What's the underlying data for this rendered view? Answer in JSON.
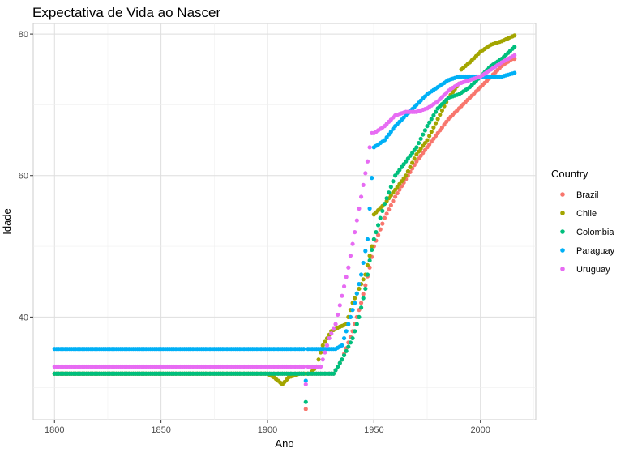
{
  "chart_data": {
    "type": "scatter",
    "title": "Expectativa de Vida ao Nascer",
    "xlabel": "Ano",
    "ylabel": "Idade",
    "xlim": [
      1790,
      2026
    ],
    "ylim": [
      25.5,
      81.5
    ],
    "x_ticks": [
      1800,
      1850,
      1900,
      1950,
      2000
    ],
    "y_ticks": [
      40,
      60,
      80
    ],
    "grid": true,
    "legend": {
      "title": "Country",
      "placement": "right"
    },
    "series": [
      {
        "name": "Brazil",
        "color": "#F8766D",
        "points": [
          [
            1800,
            32
          ],
          [
            1850,
            32
          ],
          [
            1900,
            32
          ],
          [
            1917,
            32
          ],
          [
            1918,
            27
          ],
          [
            1919,
            32
          ],
          [
            1920,
            32
          ],
          [
            1925,
            32
          ],
          [
            1930,
            32
          ],
          [
            1931,
            32
          ],
          [
            1935,
            34
          ],
          [
            1940,
            38
          ],
          [
            1944,
            42
          ],
          [
            1948,
            47
          ],
          [
            1950,
            50
          ],
          [
            1955,
            54
          ],
          [
            1960,
            57
          ],
          [
            1965,
            59.5
          ],
          [
            1970,
            62
          ],
          [
            1975,
            64
          ],
          [
            1980,
            66
          ],
          [
            1985,
            68
          ],
          [
            1990,
            69.5
          ],
          [
            1995,
            71
          ],
          [
            2000,
            72.5
          ],
          [
            2005,
            74
          ],
          [
            2010,
            75.5
          ],
          [
            2015,
            76.5
          ],
          [
            2016,
            76.5
          ]
        ]
      },
      {
        "name": "Chile",
        "color": "#A3A500",
        "points": [
          [
            1800,
            32
          ],
          [
            1850,
            32
          ],
          [
            1900,
            32
          ],
          [
            1903,
            31.5
          ],
          [
            1907,
            30.5
          ],
          [
            1910,
            31.5
          ],
          [
            1915,
            32
          ],
          [
            1920,
            32
          ],
          [
            1923,
            33
          ],
          [
            1926,
            36
          ],
          [
            1930,
            38
          ],
          [
            1933,
            38.5
          ],
          [
            1937,
            39
          ],
          [
            1940,
            42
          ],
          [
            1943,
            44
          ],
          [
            1946,
            46
          ],
          [
            1949,
            50
          ],
          [
            1950,
            54.5
          ],
          [
            1955,
            56
          ],
          [
            1960,
            58
          ],
          [
            1965,
            60
          ],
          [
            1970,
            63
          ],
          [
            1975,
            65
          ],
          [
            1980,
            68
          ],
          [
            1985,
            71
          ],
          [
            1990,
            73
          ],
          [
            1991,
            75
          ],
          [
            1995,
            76
          ],
          [
            2000,
            77.5
          ],
          [
            2005,
            78.5
          ],
          [
            2010,
            79
          ],
          [
            2016,
            79.8
          ]
        ]
      },
      {
        "name": "Colombia",
        "color": "#00BF7D",
        "points": [
          [
            1800,
            32
          ],
          [
            1850,
            32
          ],
          [
            1900,
            32
          ],
          [
            1917,
            32
          ],
          [
            1918,
            28
          ],
          [
            1919,
            32
          ],
          [
            1925,
            32
          ],
          [
            1931,
            32
          ],
          [
            1935,
            34
          ],
          [
            1940,
            37
          ],
          [
            1943,
            40
          ],
          [
            1946,
            44
          ],
          [
            1948,
            48
          ],
          [
            1950,
            51
          ],
          [
            1955,
            56
          ],
          [
            1960,
            60
          ],
          [
            1965,
            62
          ],
          [
            1970,
            64
          ],
          [
            1975,
            67
          ],
          [
            1980,
            69.5
          ],
          [
            1985,
            71
          ],
          [
            1990,
            71.5
          ],
          [
            1995,
            72.5
          ],
          [
            2000,
            74
          ],
          [
            2005,
            75.5
          ],
          [
            2010,
            76.5
          ],
          [
            2016,
            78.2
          ]
        ]
      },
      {
        "name": "Paraguay",
        "color": "#00B0F6",
        "points": [
          [
            1800,
            35.5
          ],
          [
            1850,
            35.5
          ],
          [
            1900,
            35.5
          ],
          [
            1917,
            35.5
          ],
          [
            1918,
            31
          ],
          [
            1919,
            35.5
          ],
          [
            1925,
            35.5
          ],
          [
            1932,
            35.5
          ],
          [
            1935,
            36
          ],
          [
            1938,
            39
          ],
          [
            1941,
            42
          ],
          [
            1944,
            46
          ],
          [
            1947,
            51
          ],
          [
            1950,
            64
          ],
          [
            1955,
            65
          ],
          [
            1960,
            67
          ],
          [
            1965,
            68.5
          ],
          [
            1970,
            70
          ],
          [
            1975,
            71.5
          ],
          [
            1980,
            72.5
          ],
          [
            1985,
            73.5
          ],
          [
            1990,
            74
          ],
          [
            1995,
            74
          ],
          [
            2000,
            74
          ],
          [
            2005,
            74
          ],
          [
            2010,
            74
          ],
          [
            2016,
            74.5
          ]
        ]
      },
      {
        "name": "Uruguay",
        "color": "#E76BF3",
        "points": [
          [
            1800,
            33
          ],
          [
            1850,
            33
          ],
          [
            1900,
            33
          ],
          [
            1917,
            33
          ],
          [
            1918,
            30.5
          ],
          [
            1919,
            33
          ],
          [
            1925,
            33
          ],
          [
            1929,
            37
          ],
          [
            1932,
            39
          ],
          [
            1935,
            43
          ],
          [
            1938,
            47
          ],
          [
            1941,
            52
          ],
          [
            1944,
            57
          ],
          [
            1947,
            62
          ],
          [
            1949,
            66
          ],
          [
            1950,
            66
          ],
          [
            1955,
            67
          ],
          [
            1960,
            68.5
          ],
          [
            1965,
            69
          ],
          [
            1970,
            69
          ],
          [
            1975,
            69.5
          ],
          [
            1980,
            70.5
          ],
          [
            1985,
            72
          ],
          [
            1990,
            73
          ],
          [
            1995,
            73.5
          ],
          [
            2000,
            74
          ],
          [
            2005,
            75
          ],
          [
            2010,
            76
          ],
          [
            2016,
            77
          ]
        ]
      }
    ]
  }
}
